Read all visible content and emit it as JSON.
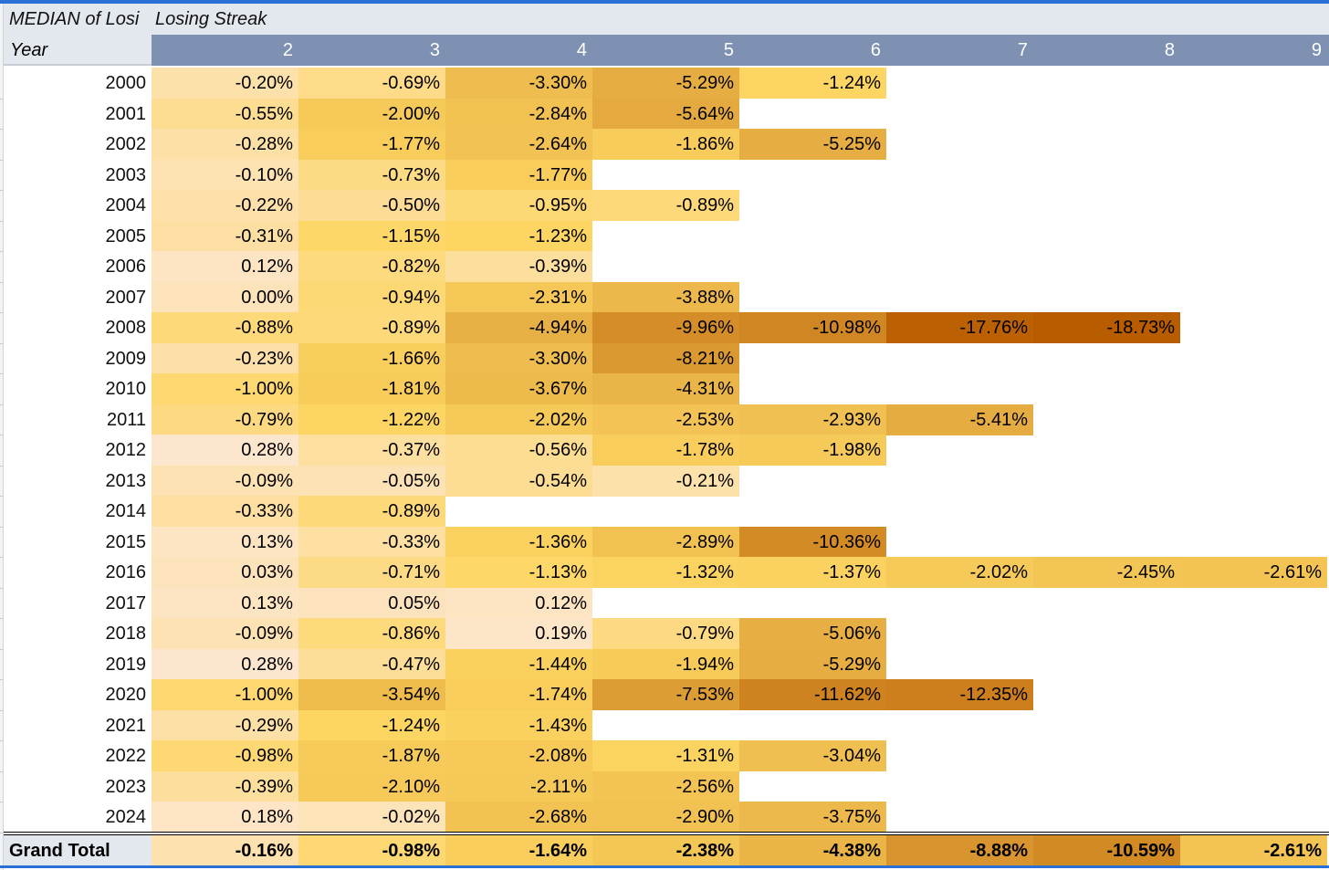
{
  "pivot": {
    "title_truncated": "MEDIAN of Losi",
    "title_column": "Losing Streak",
    "row_header": "Year",
    "columns": [
      "2",
      "3",
      "4",
      "5",
      "6",
      "7",
      "8",
      "9"
    ],
    "rows": [
      {
        "year": "2000",
        "values": [
          "-0.20%",
          "-0.69%",
          "-3.30%",
          "-5.29%",
          "-1.24%",
          "",
          "",
          ""
        ]
      },
      {
        "year": "2001",
        "values": [
          "-0.55%",
          "-2.00%",
          "-2.84%",
          "-5.64%",
          "",
          "",
          "",
          ""
        ]
      },
      {
        "year": "2002",
        "values": [
          "-0.28%",
          "-1.77%",
          "-2.64%",
          "-1.86%",
          "-5.25%",
          "",
          "",
          ""
        ]
      },
      {
        "year": "2003",
        "values": [
          "-0.10%",
          "-0.73%",
          "-1.77%",
          "",
          "",
          "",
          "",
          ""
        ]
      },
      {
        "year": "2004",
        "values": [
          "-0.22%",
          "-0.50%",
          "-0.95%",
          "-0.89%",
          "",
          "",
          "",
          ""
        ]
      },
      {
        "year": "2005",
        "values": [
          "-0.31%",
          "-1.15%",
          "-1.23%",
          "",
          "",
          "",
          "",
          ""
        ]
      },
      {
        "year": "2006",
        "values": [
          "0.12%",
          "-0.82%",
          "-0.39%",
          "",
          "",
          "",
          "",
          ""
        ]
      },
      {
        "year": "2007",
        "values": [
          "0.00%",
          "-0.94%",
          "-2.31%",
          "-3.88%",
          "",
          "",
          "",
          ""
        ]
      },
      {
        "year": "2008",
        "values": [
          "-0.88%",
          "-0.89%",
          "-4.94%",
          "-9.96%",
          "-10.98%",
          "-17.76%",
          "-18.73%",
          ""
        ]
      },
      {
        "year": "2009",
        "values": [
          "-0.23%",
          "-1.66%",
          "-3.30%",
          "-8.21%",
          "",
          "",
          "",
          ""
        ]
      },
      {
        "year": "2010",
        "values": [
          "-1.00%",
          "-1.81%",
          "-3.67%",
          "-4.31%",
          "",
          "",
          "",
          ""
        ]
      },
      {
        "year": "2011",
        "values": [
          "-0.79%",
          "-1.22%",
          "-2.02%",
          "-2.53%",
          "-2.93%",
          "-5.41%",
          "",
          ""
        ]
      },
      {
        "year": "2012",
        "values": [
          "0.28%",
          "-0.37%",
          "-0.56%",
          "-1.78%",
          "-1.98%",
          "",
          "",
          ""
        ]
      },
      {
        "year": "2013",
        "values": [
          "-0.09%",
          "-0.05%",
          "-0.54%",
          "-0.21%",
          "",
          "",
          "",
          ""
        ]
      },
      {
        "year": "2014",
        "values": [
          "-0.33%",
          "-0.89%",
          "",
          "",
          "",
          "",
          "",
          ""
        ]
      },
      {
        "year": "2015",
        "values": [
          "0.13%",
          "-0.33%",
          "-1.36%",
          "-2.89%",
          "-10.36%",
          "",
          "",
          ""
        ]
      },
      {
        "year": "2016",
        "values": [
          "0.03%",
          "-0.71%",
          "-1.13%",
          "-1.32%",
          "-1.37%",
          "-2.02%",
          "-2.45%",
          "-2.61%"
        ]
      },
      {
        "year": "2017",
        "values": [
          "0.13%",
          "0.05%",
          "0.12%",
          "",
          "",
          "",
          "",
          ""
        ]
      },
      {
        "year": "2018",
        "values": [
          "-0.09%",
          "-0.86%",
          "0.19%",
          "-0.79%",
          "-5.06%",
          "",
          "",
          ""
        ]
      },
      {
        "year": "2019",
        "values": [
          "0.28%",
          "-0.47%",
          "-1.44%",
          "-1.94%",
          "-5.29%",
          "",
          "",
          ""
        ]
      },
      {
        "year": "2020",
        "values": [
          "-1.00%",
          "-3.54%",
          "-1.74%",
          "-7.53%",
          "-11.62%",
          "-12.35%",
          "",
          ""
        ]
      },
      {
        "year": "2021",
        "values": [
          "-0.29%",
          "-1.24%",
          "-1.43%",
          "",
          "",
          "",
          "",
          ""
        ]
      },
      {
        "year": "2022",
        "values": [
          "-0.98%",
          "-1.87%",
          "-2.08%",
          "-1.31%",
          "-3.04%",
          "",
          "",
          ""
        ]
      },
      {
        "year": "2023",
        "values": [
          "-0.39%",
          "-2.10%",
          "-2.11%",
          "-2.56%",
          "",
          "",
          "",
          ""
        ]
      },
      {
        "year": "2024",
        "values": [
          "0.18%",
          "-0.02%",
          "-2.68%",
          "-2.90%",
          "-3.75%",
          "",
          "",
          ""
        ]
      }
    ],
    "grand_total": {
      "label": "Grand Total",
      "values": [
        "-0.16%",
        "-0.98%",
        "-1.64%",
        "-2.38%",
        "-4.38%",
        "-8.88%",
        "-10.59%",
        "-2.61%"
      ]
    },
    "colors": {
      "header_blue": "#7e91b3",
      "header_grey": "#e3e7ee",
      "selection_blue": "#2a6fd6",
      "scale_light": "#fde6cf",
      "scale_mid": "#fdd663",
      "scale_dark": "#b85c00"
    }
  }
}
